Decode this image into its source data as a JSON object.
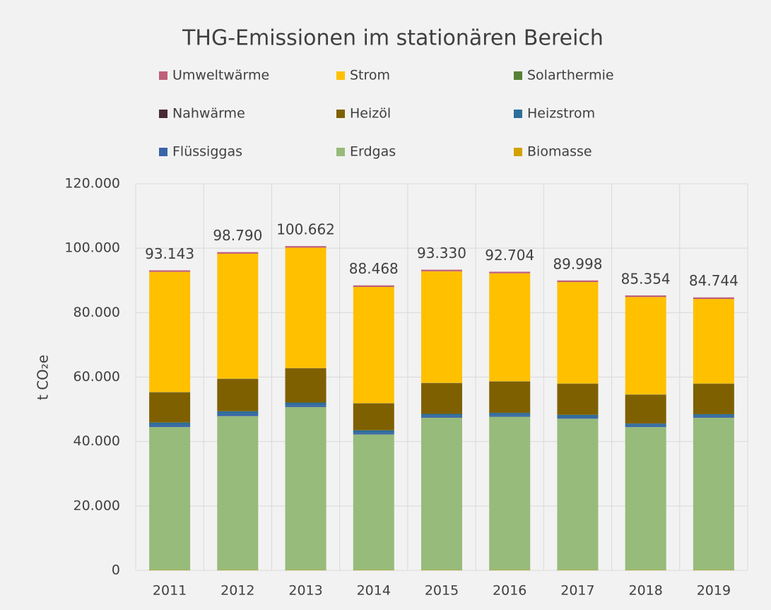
{
  "chart_data": {
    "type": "stacked_bar",
    "title": "THG-Emissionen im stationären Bereich",
    "y_label": "t CO₂e",
    "categories": [
      "2011",
      "2012",
      "2013",
      "2014",
      "2015",
      "2016",
      "2017",
      "2018",
      "2019"
    ],
    "series": [
      {
        "name": "Umweltwärme",
        "color": "#c0607a",
        "values": [
          493,
          500,
          500,
          500,
          500,
          500,
          500,
          500,
          500
        ]
      },
      {
        "name": "Strom",
        "color": "#ffc000",
        "values": [
          37300,
          38790,
          37362,
          36068,
          34630,
          33504,
          31498,
          30254,
          26244
        ]
      },
      {
        "name": "Solarthermie",
        "color": "#548235",
        "values": [
          100,
          50,
          50,
          50,
          50,
          50,
          50,
          50,
          50
        ]
      },
      {
        "name": "Nahwärme",
        "color": "#4a2a33",
        "values": [
          50,
          50,
          50,
          50,
          50,
          50,
          50,
          50,
          50
        ]
      },
      {
        "name": "Heizöl",
        "color": "#7f6000",
        "values": [
          9300,
          10000,
          10600,
          8300,
          9500,
          9700,
          9600,
          8900,
          9400
        ]
      },
      {
        "name": "Heizstrom",
        "color": "#2e6e99",
        "values": [
          800,
          900,
          800,
          800,
          700,
          700,
          700,
          600,
          600
        ]
      },
      {
        "name": "Flüssiggas",
        "color": "#3a64a8",
        "values": [
          600,
          600,
          600,
          500,
          500,
          500,
          500,
          500,
          500
        ]
      },
      {
        "name": "Erdgas",
        "color": "#97bb7a",
        "values": [
          44400,
          47800,
          50600,
          42100,
          47300,
          47600,
          47000,
          44400,
          47300
        ]
      },
      {
        "name": "Biomasse",
        "color": "#d4a100",
        "values": [
          100,
          100,
          100,
          100,
          100,
          100,
          100,
          100,
          100
        ]
      }
    ],
    "totals": {
      "values": [
        93143,
        98790,
        100662,
        88468,
        93330,
        92704,
        89998,
        85354,
        84744
      ],
      "value_labels": [
        "93.143",
        "98.790",
        "100.662",
        "88.468",
        "93.330",
        "92.704",
        "89.998",
        "85.354",
        "84.744"
      ]
    },
    "ylim": [
      0,
      120000
    ],
    "yticks": [
      0,
      {
        "value": 20000,
        "label": "20.000"
      },
      {
        "value": 40000,
        "label": "40.000"
      },
      {
        "value": 60000,
        "label": "60.000"
      },
      {
        "value": 80000,
        "label": "80.000"
      },
      {
        "value": 100000,
        "label": "100.000"
      },
      {
        "value": 120000,
        "label": "120.000"
      }
    ],
    "grid": true
  }
}
